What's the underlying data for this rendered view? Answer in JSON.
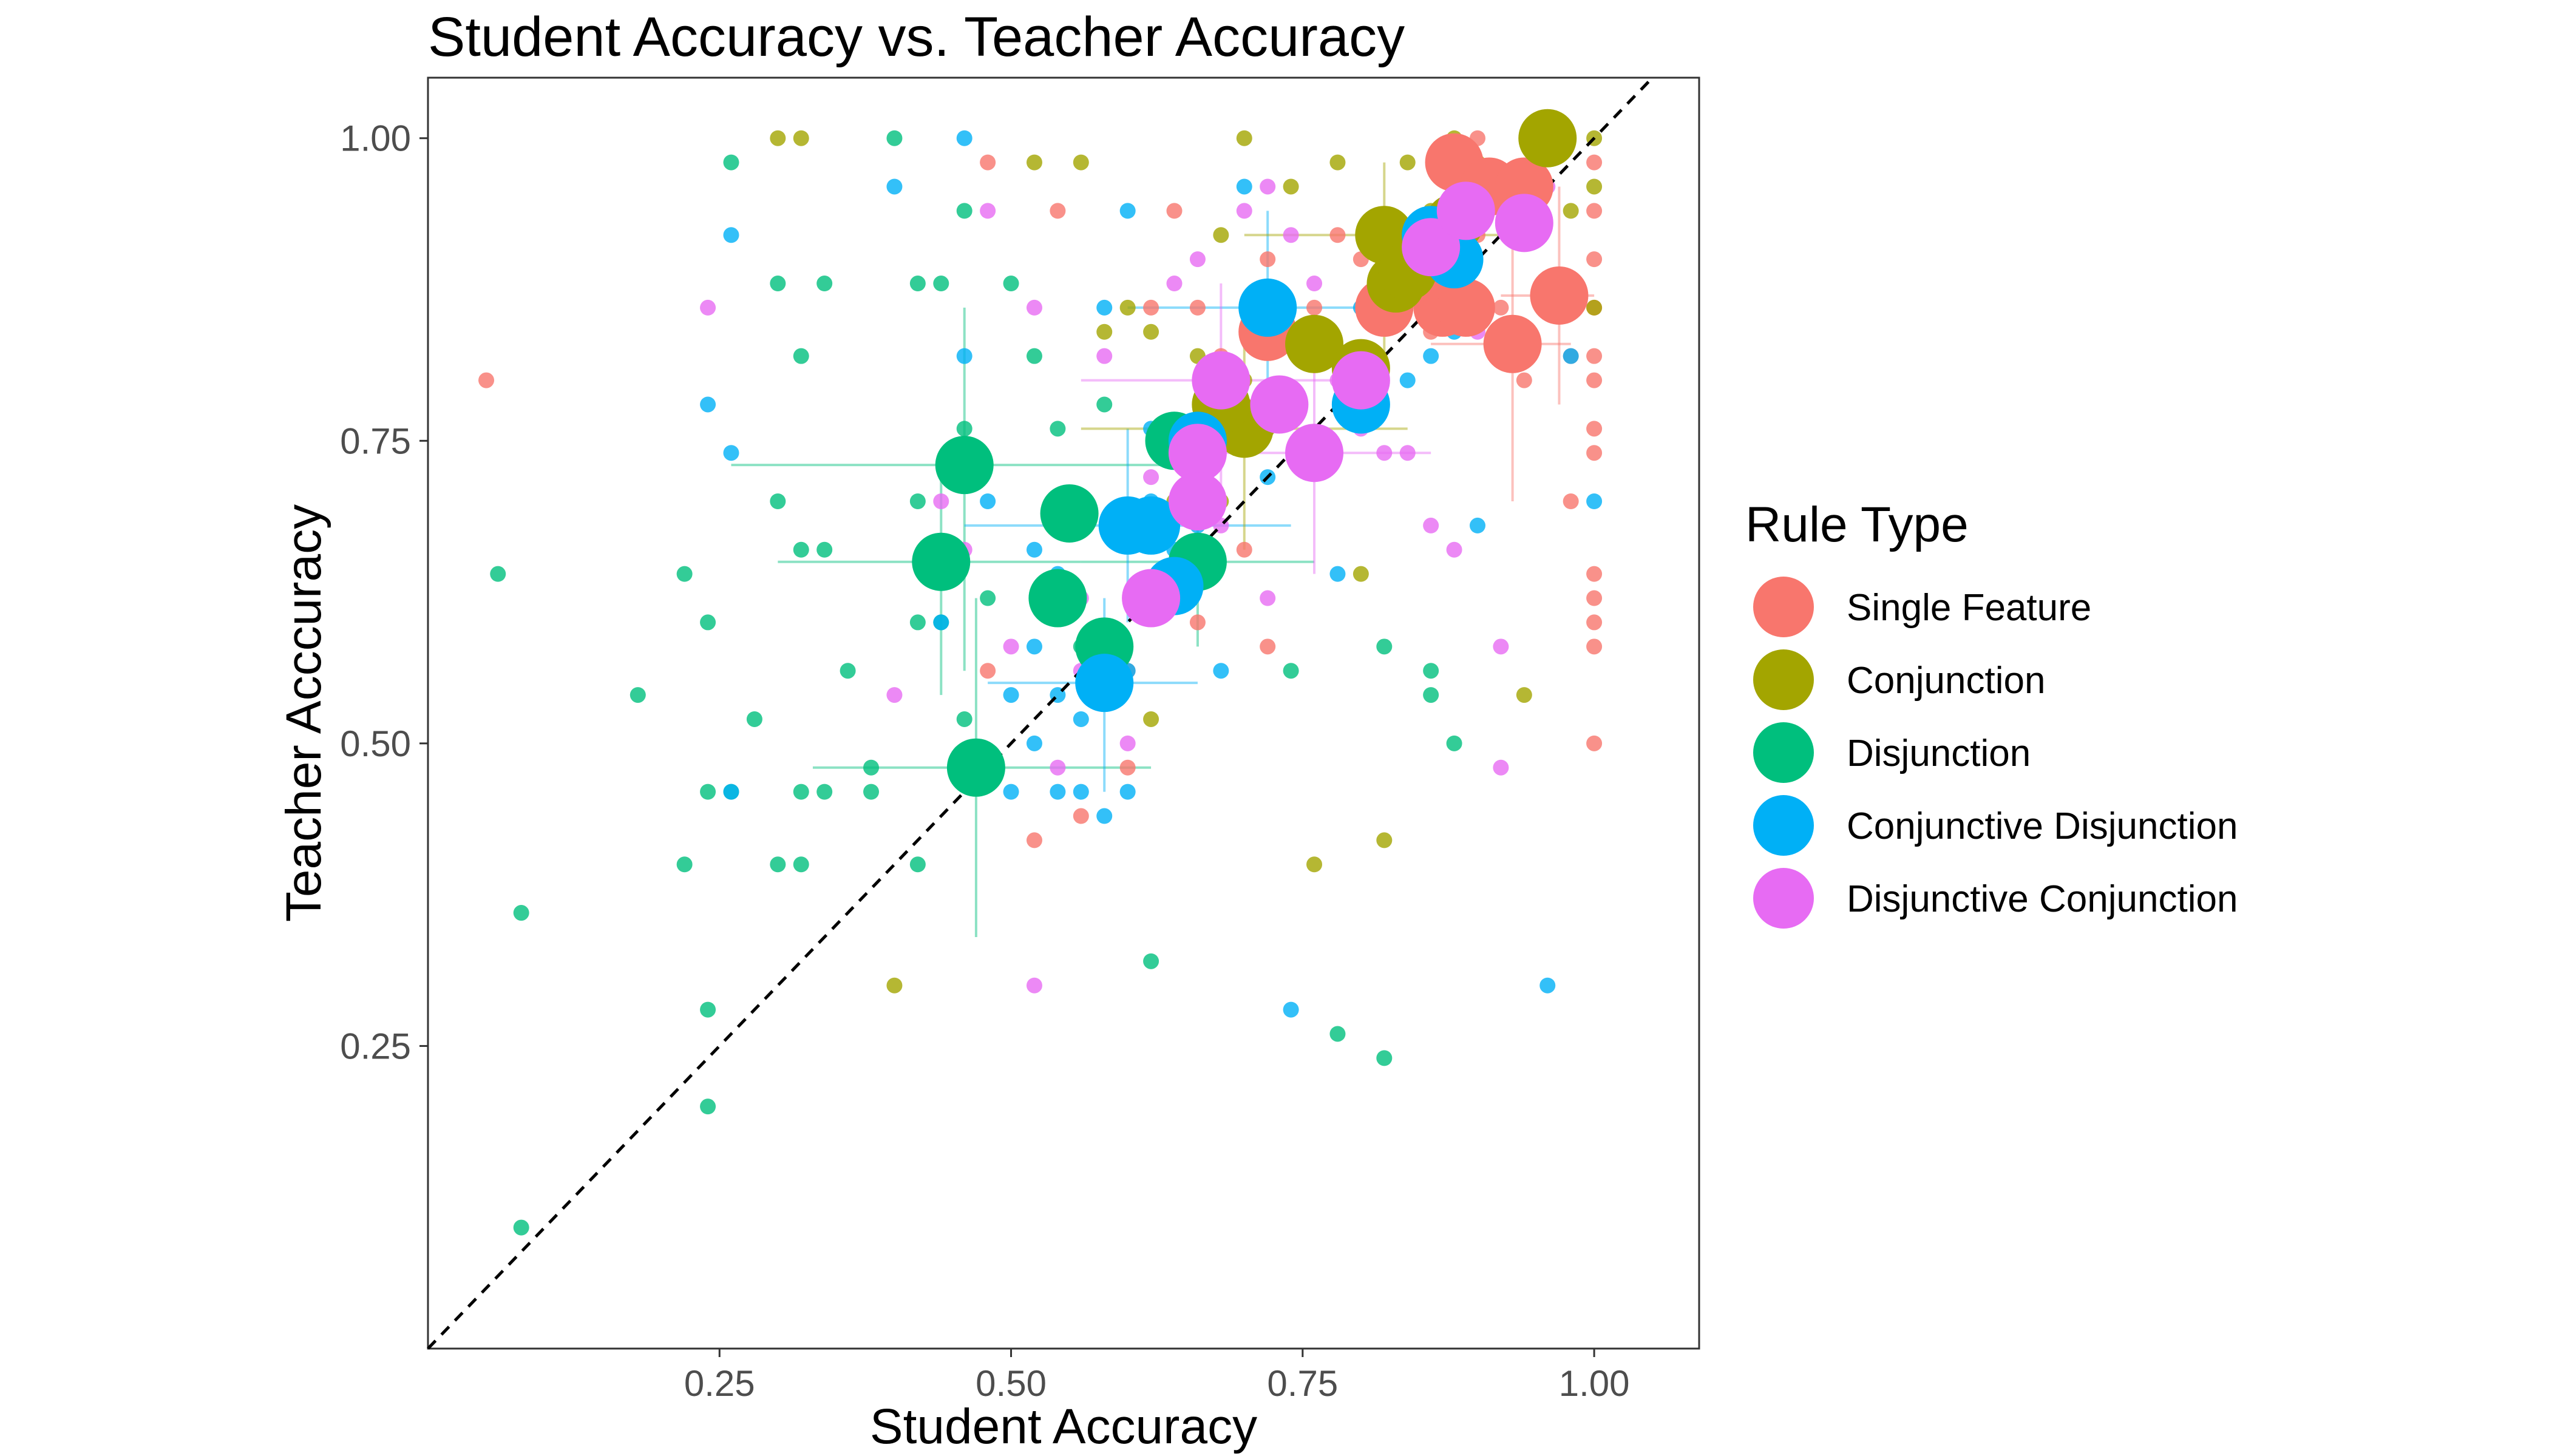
{
  "chart_data": {
    "type": "scatter",
    "title": "Student Accuracy vs. Teacher Accuracy",
    "xlabel": "Student Accuracy",
    "ylabel": "Teacher Acccuracy",
    "xlim": [
      0.0,
      1.09
    ],
    "ylim": [
      0.0,
      1.05
    ],
    "x_ticks": [
      {
        "value": 0.25,
        "label": "0.25"
      },
      {
        "value": 0.5,
        "label": "0.50"
      },
      {
        "value": 0.75,
        "label": "0.75"
      },
      {
        "value": 1.0,
        "label": "1.00"
      }
    ],
    "y_ticks": [
      {
        "value": 0.25,
        "label": "0.25"
      },
      {
        "value": 0.5,
        "label": "0.50"
      },
      {
        "value": 0.75,
        "label": "0.75"
      },
      {
        "value": 1.0,
        "label": "1.00"
      }
    ],
    "grid": false,
    "reference_line": "y = x (dashed)",
    "legend": {
      "title": "Rule Type",
      "position": "right",
      "entries": [
        {
          "label": "Single Feature",
          "color": "#F8766D"
        },
        {
          "label": "Conjunction",
          "color": "#A3A500"
        },
        {
          "label": "Disjunction",
          "color": "#00BF7D"
        },
        {
          "label": "Conjunctive Disjunction",
          "color": "#00B0F6"
        },
        {
          "label": "Disjunctive Conjunction",
          "color": "#E76BF3"
        }
      ]
    },
    "series": [
      {
        "name": "Single Feature",
        "color": "#F8766D",
        "points": [
          [
            0.05,
            0.8
          ],
          [
            0.48,
            0.56
          ],
          [
            0.48,
            0.98
          ],
          [
            0.54,
            0.94
          ],
          [
            0.6,
            0.56
          ],
          [
            0.62,
            0.86
          ],
          [
            0.64,
            0.94
          ],
          [
            0.66,
            0.86
          ],
          [
            0.68,
            0.82
          ],
          [
            0.7,
            0.78
          ],
          [
            0.72,
            0.9
          ],
          [
            0.72,
            0.58
          ],
          [
            0.76,
            0.86
          ],
          [
            0.78,
            0.92
          ],
          [
            0.8,
            0.9
          ],
          [
            0.82,
            0.86
          ],
          [
            0.84,
            0.88
          ],
          [
            0.86,
            0.84
          ],
          [
            0.88,
            0.98
          ],
          [
            0.9,
            1.0
          ],
          [
            0.9,
            0.92
          ],
          [
            0.92,
            0.86
          ],
          [
            0.94,
            0.8
          ],
          [
            0.96,
            1.0
          ],
          [
            0.98,
            0.82
          ],
          [
            1.0,
            0.98
          ],
          [
            1.0,
            0.94
          ],
          [
            1.0,
            0.9
          ],
          [
            1.0,
            0.86
          ],
          [
            1.0,
            0.82
          ],
          [
            1.0,
            0.8
          ],
          [
            1.0,
            0.76
          ],
          [
            1.0,
            0.74
          ],
          [
            1.0,
            0.64
          ],
          [
            1.0,
            0.62
          ],
          [
            1.0,
            0.6
          ],
          [
            1.0,
            0.58
          ],
          [
            1.0,
            0.5
          ],
          [
            0.98,
            0.7
          ],
          [
            0.56,
            0.44
          ],
          [
            0.52,
            0.42
          ],
          [
            0.6,
            0.48
          ],
          [
            0.66,
            0.6
          ],
          [
            0.7,
            0.66
          ]
        ]
      },
      {
        "name": "Conjunction",
        "color": "#A3A500",
        "points": [
          [
            0.3,
            1.0
          ],
          [
            0.32,
            1.0
          ],
          [
            0.4,
            0.3
          ],
          [
            0.52,
            0.98
          ],
          [
            0.56,
            0.98
          ],
          [
            0.6,
            0.86
          ],
          [
            0.62,
            0.84
          ],
          [
            0.66,
            0.82
          ],
          [
            0.68,
            0.92
          ],
          [
            0.7,
            1.0
          ],
          [
            0.72,
            0.76
          ],
          [
            0.74,
            0.96
          ],
          [
            0.76,
            0.4
          ],
          [
            0.78,
            0.98
          ],
          [
            0.8,
            0.64
          ],
          [
            0.82,
            0.42
          ],
          [
            0.84,
            0.98
          ],
          [
            0.86,
            0.94
          ],
          [
            0.88,
            1.0
          ],
          [
            0.9,
            0.98
          ],
          [
            0.92,
            0.96
          ],
          [
            0.94,
            0.54
          ],
          [
            0.96,
            1.0
          ],
          [
            0.98,
            0.94
          ],
          [
            1.0,
            1.0
          ],
          [
            1.0,
            0.96
          ],
          [
            1.0,
            0.86
          ],
          [
            0.64,
            0.7
          ],
          [
            0.68,
            0.7
          ],
          [
            0.7,
            0.8
          ],
          [
            0.58,
            0.84
          ],
          [
            0.62,
            0.52
          ]
        ]
      },
      {
        "name": "Disjunction",
        "color": "#00BF7D",
        "points": [
          [
            0.08,
            0.36
          ],
          [
            0.08,
            0.1
          ],
          [
            0.06,
            0.64
          ],
          [
            0.18,
            0.54
          ],
          [
            0.22,
            0.64
          ],
          [
            0.22,
            0.4
          ],
          [
            0.24,
            0.6
          ],
          [
            0.24,
            0.46
          ],
          [
            0.24,
            0.28
          ],
          [
            0.24,
            0.2
          ],
          [
            0.26,
            0.98
          ],
          [
            0.28,
            0.52
          ],
          [
            0.3,
            0.88
          ],
          [
            0.3,
            0.7
          ],
          [
            0.3,
            0.4
          ],
          [
            0.32,
            0.82
          ],
          [
            0.32,
            0.66
          ],
          [
            0.32,
            0.46
          ],
          [
            0.32,
            0.4
          ],
          [
            0.34,
            0.88
          ],
          [
            0.34,
            0.66
          ],
          [
            0.34,
            0.46
          ],
          [
            0.36,
            0.56
          ],
          [
            0.38,
            0.48
          ],
          [
            0.38,
            0.46
          ],
          [
            0.4,
            1.0
          ],
          [
            0.42,
            0.88
          ],
          [
            0.42,
            0.7
          ],
          [
            0.42,
            0.6
          ],
          [
            0.42,
            0.4
          ],
          [
            0.44,
            0.88
          ],
          [
            0.44,
            0.6
          ],
          [
            0.46,
            0.94
          ],
          [
            0.46,
            0.76
          ],
          [
            0.46,
            0.52
          ],
          [
            0.48,
            0.62
          ],
          [
            0.5,
            0.88
          ],
          [
            0.52,
            0.82
          ],
          [
            0.54,
            0.76
          ],
          [
            0.56,
            0.58
          ],
          [
            0.58,
            0.78
          ],
          [
            0.62,
            0.32
          ],
          [
            0.74,
            0.56
          ],
          [
            0.78,
            0.26
          ],
          [
            0.82,
            0.24
          ],
          [
            0.82,
            0.58
          ],
          [
            0.86,
            0.56
          ],
          [
            0.86,
            0.54
          ],
          [
            0.88,
            0.5
          ],
          [
            0.44,
            0.64
          ],
          [
            0.26,
            0.46
          ]
        ]
      },
      {
        "name": "Conjunctive Disjunction",
        "color": "#00B0F6",
        "points": [
          [
            0.24,
            0.78
          ],
          [
            0.26,
            0.92
          ],
          [
            0.26,
            0.74
          ],
          [
            0.26,
            0.46
          ],
          [
            0.4,
            0.96
          ],
          [
            0.44,
            0.6
          ],
          [
            0.46,
            0.82
          ],
          [
            0.46,
            1.0
          ],
          [
            0.48,
            0.7
          ],
          [
            0.5,
            0.54
          ],
          [
            0.5,
            0.46
          ],
          [
            0.52,
            0.66
          ],
          [
            0.52,
            0.58
          ],
          [
            0.52,
            0.5
          ],
          [
            0.54,
            0.64
          ],
          [
            0.54,
            0.54
          ],
          [
            0.54,
            0.46
          ],
          [
            0.56,
            0.7
          ],
          [
            0.56,
            0.52
          ],
          [
            0.56,
            0.46
          ],
          [
            0.58,
            0.86
          ],
          [
            0.58,
            0.44
          ],
          [
            0.6,
            0.94
          ],
          [
            0.6,
            0.56
          ],
          [
            0.6,
            0.46
          ],
          [
            0.62,
            0.76
          ],
          [
            0.66,
            0.68
          ],
          [
            0.68,
            0.56
          ],
          [
            0.7,
            0.96
          ],
          [
            0.72,
            0.72
          ],
          [
            0.74,
            0.28
          ],
          [
            0.78,
            0.64
          ],
          [
            0.8,
            0.86
          ],
          [
            0.84,
            0.8
          ],
          [
            0.86,
            0.82
          ],
          [
            0.88,
            0.84
          ],
          [
            0.9,
            0.68
          ],
          [
            0.96,
            0.3
          ],
          [
            0.98,
            0.82
          ],
          [
            1.0,
            0.7
          ],
          [
            0.64,
            0.66
          ],
          [
            0.62,
            0.7
          ],
          [
            0.66,
            0.74
          ]
        ]
      },
      {
        "name": "Disjunctive Conjunction",
        "color": "#E76BF3",
        "points": [
          [
            0.24,
            0.86
          ],
          [
            0.4,
            0.54
          ],
          [
            0.44,
            0.7
          ],
          [
            0.46,
            0.66
          ],
          [
            0.5,
            0.58
          ],
          [
            0.52,
            0.86
          ],
          [
            0.52,
            0.3
          ],
          [
            0.54,
            0.48
          ],
          [
            0.56,
            0.56
          ],
          [
            0.58,
            0.82
          ],
          [
            0.6,
            0.5
          ],
          [
            0.62,
            0.72
          ],
          [
            0.64,
            0.88
          ],
          [
            0.66,
            0.9
          ],
          [
            0.68,
            0.68
          ],
          [
            0.7,
            0.94
          ],
          [
            0.72,
            0.96
          ],
          [
            0.74,
            0.92
          ],
          [
            0.76,
            0.88
          ],
          [
            0.78,
            0.8
          ],
          [
            0.8,
            0.76
          ],
          [
            0.84,
            0.74
          ],
          [
            0.86,
            0.68
          ],
          [
            0.88,
            0.66
          ],
          [
            0.9,
            0.84
          ],
          [
            0.92,
            0.58
          ],
          [
            0.92,
            0.48
          ],
          [
            0.94,
            0.92
          ],
          [
            0.96,
            0.96
          ],
          [
            0.48,
            0.94
          ],
          [
            0.56,
            0.62
          ],
          [
            0.66,
            0.64
          ],
          [
            0.72,
            0.62
          ],
          [
            0.82,
            0.74
          ]
        ]
      }
    ],
    "mean_points": {
      "Single Feature": [
        [
          0.72,
          0.84
        ],
        [
          0.82,
          0.86
        ],
        [
          0.87,
          0.86
        ],
        [
          0.89,
          0.86
        ],
        [
          0.88,
          0.98
        ],
        [
          0.93,
          0.83
        ],
        [
          0.97,
          0.87
        ],
        [
          0.91,
          0.96
        ],
        [
          0.94,
          0.96
        ]
      ],
      "Conjunction": [
        [
          0.76,
          0.83
        ],
        [
          0.82,
          0.92
        ],
        [
          0.83,
          0.88
        ],
        [
          0.84,
          0.89
        ],
        [
          0.96,
          1.0
        ],
        [
          0.8,
          0.81
        ],
        [
          0.7,
          0.76
        ],
        [
          0.68,
          0.78
        ],
        [
          0.88,
          0.93
        ]
      ],
      "Disjunction": [
        [
          0.46,
          0.73
        ],
        [
          0.44,
          0.65
        ],
        [
          0.55,
          0.69
        ],
        [
          0.54,
          0.62
        ],
        [
          0.58,
          0.58
        ],
        [
          0.47,
          0.48
        ],
        [
          0.66,
          0.65
        ],
        [
          0.64,
          0.75
        ]
      ],
      "Conjunctive Disjunction": [
        [
          0.58,
          0.55
        ],
        [
          0.6,
          0.68
        ],
        [
          0.62,
          0.68
        ],
        [
          0.64,
          0.63
        ],
        [
          0.72,
          0.86
        ],
        [
          0.8,
          0.78
        ],
        [
          0.86,
          0.92
        ],
        [
          0.88,
          0.9
        ],
        [
          0.66,
          0.75
        ]
      ],
      "Disjunctive Conjunction": [
        [
          0.62,
          0.62
        ],
        [
          0.66,
          0.74
        ],
        [
          0.68,
          0.8
        ],
        [
          0.73,
          0.78
        ],
        [
          0.76,
          0.74
        ],
        [
          0.8,
          0.8
        ],
        [
          0.86,
          0.91
        ],
        [
          0.89,
          0.94
        ],
        [
          0.94,
          0.93
        ],
        [
          0.66,
          0.7
        ]
      ]
    },
    "error_bars": [
      {
        "series": "Disjunction",
        "x": 0.47,
        "y": 0.48,
        "xerr": [
          0.33,
          0.62
        ],
        "yerr": [
          0.34,
          0.62
        ]
      },
      {
        "series": "Disjunction",
        "x": 0.46,
        "y": 0.73,
        "xerr": [
          0.26,
          0.66
        ],
        "yerr": [
          0.56,
          0.86
        ]
      },
      {
        "series": "Disjunction",
        "x": 0.44,
        "y": 0.65,
        "xerr": [
          0.3,
          0.56
        ],
        "yerr": [
          0.54,
          0.74
        ]
      },
      {
        "series": "Disjunction",
        "x": 0.66,
        "y": 0.65,
        "xerr": [
          0.56,
          0.76
        ],
        "yerr": [
          0.58,
          0.72
        ]
      },
      {
        "series": "Conjunctive Disjunction",
        "x": 0.58,
        "y": 0.55,
        "xerr": [
          0.48,
          0.66
        ],
        "yerr": [
          0.46,
          0.62
        ]
      },
      {
        "series": "Conjunctive Disjunction",
        "x": 0.6,
        "y": 0.68,
        "xerr": [
          0.46,
          0.74
        ],
        "yerr": [
          0.6,
          0.76
        ]
      },
      {
        "series": "Conjunctive Disjunction",
        "x": 0.72,
        "y": 0.86,
        "xerr": [
          0.6,
          0.82
        ],
        "yerr": [
          0.76,
          0.94
        ]
      },
      {
        "series": "Conjunction",
        "x": 0.7,
        "y": 0.76,
        "xerr": [
          0.56,
          0.84
        ],
        "yerr": [
          0.66,
          0.84
        ]
      },
      {
        "series": "Conjunction",
        "x": 0.82,
        "y": 0.92,
        "xerr": [
          0.7,
          0.92
        ],
        "yerr": [
          0.82,
          0.98
        ]
      },
      {
        "series": "Single Feature",
        "x": 0.97,
        "y": 0.87,
        "xerr": [
          0.92,
          1.0
        ],
        "yerr": [
          0.78,
          0.96
        ]
      },
      {
        "series": "Single Feature",
        "x": 0.93,
        "y": 0.83,
        "xerr": [
          0.86,
          0.98
        ],
        "yerr": [
          0.7,
          0.92
        ]
      },
      {
        "series": "Disjunctive Conjunction",
        "x": 0.68,
        "y": 0.8,
        "xerr": [
          0.56,
          0.8
        ],
        "yerr": [
          0.7,
          0.88
        ]
      },
      {
        "series": "Disjunctive Conjunction",
        "x": 0.76,
        "y": 0.74,
        "xerr": [
          0.64,
          0.86
        ],
        "yerr": [
          0.64,
          0.84
        ]
      }
    ]
  }
}
